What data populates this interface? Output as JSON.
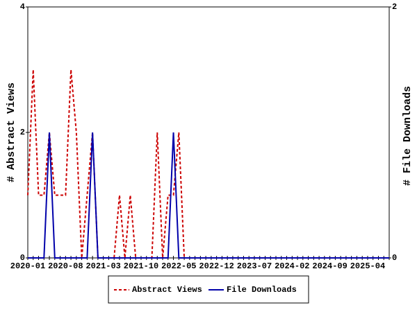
{
  "chart_data": {
    "type": "line",
    "y_label": "# Abstract Views",
    "y2_label": "# File Downloads",
    "categories": [
      "2020-01",
      null,
      null,
      null,
      null,
      null,
      null,
      "2020-08",
      null,
      null,
      null,
      null,
      null,
      null,
      "2021-03",
      null,
      null,
      null,
      null,
      null,
      null,
      "2021-10",
      null,
      null,
      null,
      null,
      null,
      null,
      "2022-05",
      null,
      null,
      null,
      null,
      null,
      null,
      "2022-12",
      null,
      null,
      null,
      null,
      null,
      null,
      "2023-07",
      null,
      null,
      null,
      null,
      null,
      null,
      "2024-02",
      null,
      null,
      null,
      null,
      null,
      null,
      "2024-09",
      null,
      null,
      null,
      null,
      null,
      null,
      "2025-04",
      null,
      null,
      null,
      null
    ],
    "series": [
      {
        "name": "Abstract Views",
        "color": "#cc0000",
        "line_style": "dashed",
        "axis": "y",
        "values": [
          1,
          3,
          1,
          1,
          2,
          1,
          1,
          1,
          3,
          2,
          0,
          1,
          2,
          0,
          0,
          0,
          0,
          1,
          0,
          1,
          0,
          0,
          0,
          0,
          2,
          0,
          1,
          1,
          2,
          0,
          0,
          0,
          0,
          0,
          0,
          0,
          0,
          0,
          0,
          0,
          0,
          0,
          0,
          0,
          0,
          0,
          0,
          0,
          0,
          0,
          0,
          0,
          0,
          0,
          0,
          0,
          0,
          0,
          0,
          0,
          0,
          0,
          0,
          0,
          0,
          0,
          0,
          0
        ]
      },
      {
        "name": "File Downloads",
        "color": "#0000aa",
        "line_style": "solid",
        "axis": "y2",
        "values": [
          0,
          0,
          0,
          0,
          1,
          0,
          0,
          0,
          0,
          0,
          0,
          0,
          1,
          0,
          0,
          0,
          0,
          0,
          0,
          0,
          0,
          0,
          0,
          0,
          0,
          0,
          0,
          1,
          0,
          0,
          0,
          0,
          0,
          0,
          0,
          0,
          0,
          0,
          0,
          0,
          0,
          0,
          0,
          0,
          0,
          0,
          0,
          0,
          0,
          0,
          0,
          0,
          0,
          0,
          0,
          0,
          0,
          0,
          0,
          0,
          0,
          0,
          0,
          0,
          0,
          0,
          0,
          0
        ]
      }
    ],
    "ylim": [
      0,
      4
    ],
    "yticks": [
      0,
      2,
      4
    ],
    "y2lim": [
      0,
      2
    ],
    "y2ticks": [
      0,
      2
    ],
    "legend": "bottom"
  }
}
